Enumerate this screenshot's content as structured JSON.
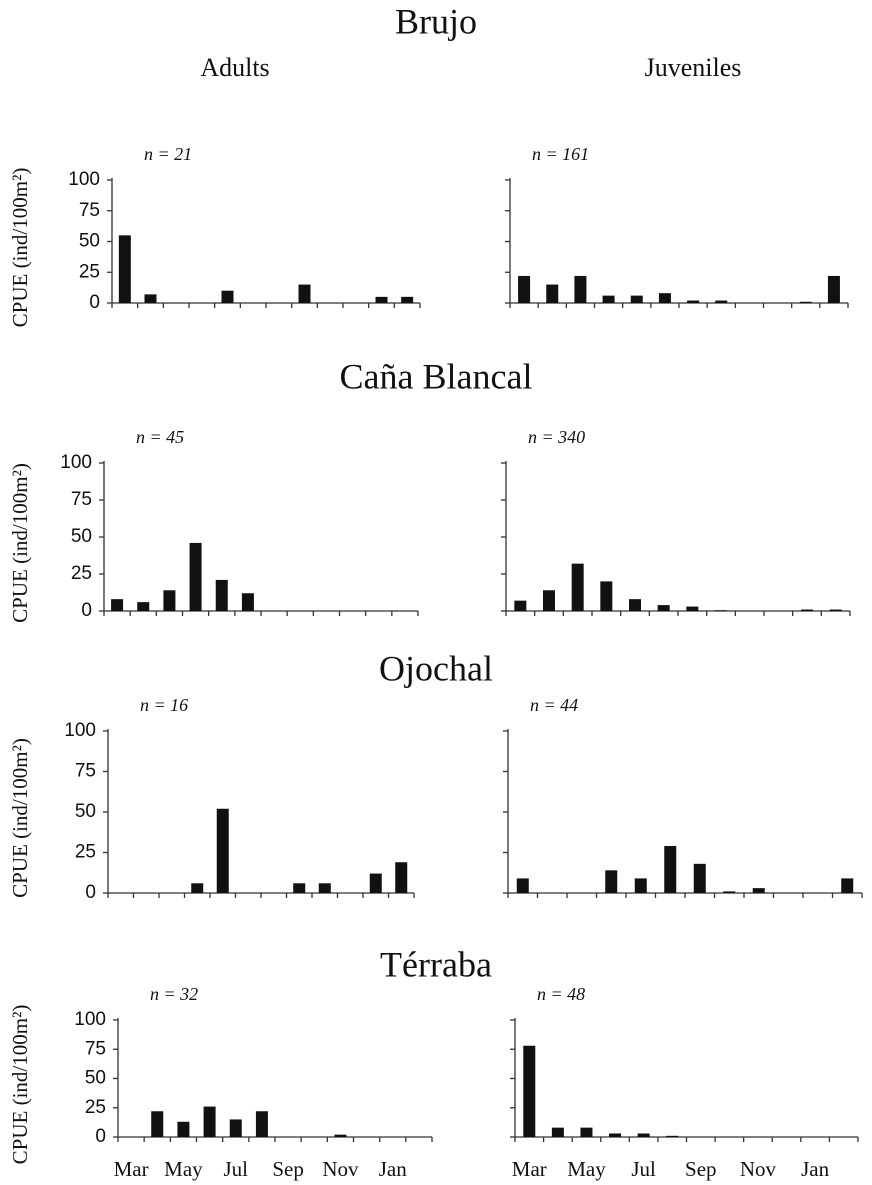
{
  "chart_data": [
    {
      "type": "bar",
      "title": "Brujo",
      "subtitle": "Adults",
      "annotation": "n = 21",
      "ylabel": "CPUE (ind/100m²)",
      "values": [
        55,
        7,
        0,
        0,
        10,
        0,
        0,
        15,
        0,
        0,
        5,
        5
      ],
      "color": "#111111",
      "ylim": [
        0,
        100
      ],
      "yticks": [
        0,
        25,
        50,
        75,
        100
      ],
      "show_ytick_labels": true
    },
    {
      "type": "bar",
      "subtitle": "Juveniles",
      "annotation": "n = 161",
      "values": [
        22,
        15,
        22,
        6,
        6,
        8,
        2,
        2,
        0,
        0,
        1,
        22
      ],
      "color": "#111111",
      "ylim": [
        0,
        100
      ],
      "yticks": [
        0,
        25,
        50,
        75,
        100
      ],
      "show_ytick_labels": false
    },
    {
      "type": "bar",
      "title": "Caña Blancal",
      "annotation": "n = 45",
      "ylabel": "CPUE (ind/100m²)",
      "values": [
        8,
        6,
        14,
        46,
        21,
        12,
        0,
        0,
        0,
        0,
        0,
        0
      ],
      "color": "#111111",
      "ylim": [
        0,
        100
      ],
      "yticks": [
        0,
        25,
        50,
        75,
        100
      ],
      "show_ytick_labels": true
    },
    {
      "type": "bar",
      "annotation": "n = 340",
      "values": [
        7,
        14,
        32,
        20,
        8,
        4,
        3,
        0.5,
        0,
        0,
        1,
        1
      ],
      "color": "#111111",
      "ylim": [
        0,
        100
      ],
      "yticks": [
        0,
        25,
        50,
        75,
        100
      ],
      "show_ytick_labels": false
    },
    {
      "type": "bar",
      "title": "Ojochal",
      "annotation": "n = 16",
      "ylabel": "CPUE (ind/100m²)",
      "values": [
        0,
        0,
        0,
        6,
        52,
        0,
        0,
        6,
        6,
        0,
        12,
        19
      ],
      "color": "#111111",
      "ylim": [
        0,
        100
      ],
      "yticks": [
        0,
        25,
        50,
        75,
        100
      ],
      "show_ytick_labels": true
    },
    {
      "type": "bar",
      "annotation": "n = 44",
      "values": [
        9,
        0,
        0,
        14,
        9,
        29,
        18,
        1,
        3,
        0,
        0,
        9
      ],
      "color": "#111111",
      "ylim": [
        0,
        100
      ],
      "yticks": [
        0,
        25,
        50,
        75,
        100
      ],
      "show_ytick_labels": false
    },
    {
      "type": "bar",
      "title": "Térraba",
      "annotation": "n = 32",
      "ylabel": "CPUE (ind/100m²)",
      "categories": [
        "Mar",
        null,
        "May",
        null,
        "Jul",
        null,
        "Sep",
        null,
        "Nov",
        null,
        "Jan",
        null
      ],
      "values": [
        0,
        22,
        13,
        26,
        15,
        22,
        0,
        0,
        2,
        0,
        0,
        0
      ],
      "color": "#111111",
      "ylim": [
        0,
        100
      ],
      "yticks": [
        0,
        25,
        50,
        75,
        100
      ],
      "show_ytick_labels": true
    },
    {
      "type": "bar",
      "annotation": "n = 48",
      "categories": [
        "Mar",
        null,
        "May",
        null,
        "Jul",
        null,
        "Sep",
        null,
        "Nov",
        null,
        "Jan",
        null
      ],
      "values": [
        78,
        8,
        8,
        3,
        3,
        1,
        0,
        0,
        0,
        0,
        0,
        0
      ],
      "color": "#111111",
      "ylim": [
        0,
        100
      ],
      "yticks": [
        0,
        25,
        50,
        75,
        100
      ],
      "show_ytick_labels": false
    }
  ]
}
